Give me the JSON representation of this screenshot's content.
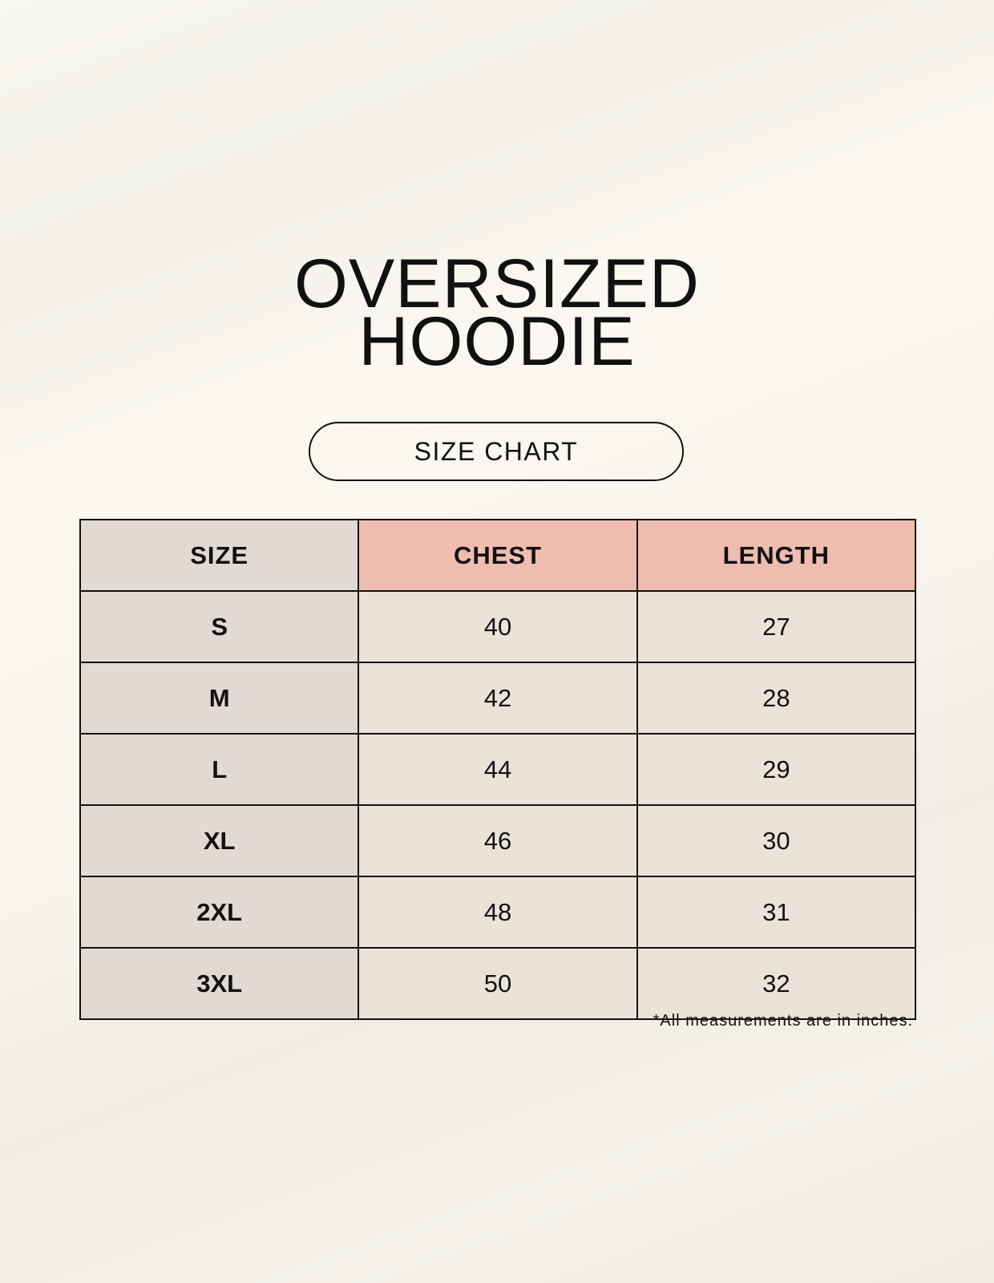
{
  "title_lines": [
    "OVERSIZED",
    "HOODIE"
  ],
  "badge": "SIZE CHART",
  "table": {
    "headers": [
      "SIZE",
      "CHEST",
      "LENGTH"
    ],
    "rows": [
      [
        "S",
        "40",
        "27"
      ],
      [
        "M",
        "42",
        "28"
      ],
      [
        "L",
        "44",
        "29"
      ],
      [
        "XL",
        "46",
        "30"
      ],
      [
        "2XL",
        "48",
        "31"
      ],
      [
        "3XL",
        "50",
        "32"
      ]
    ]
  },
  "footnote": "*All measurements are in inches.",
  "colors": {
    "size_column": "#e1d9d3",
    "header_accent": "#eebdaf",
    "cell": "#ebe3d8",
    "background": "#f9f6ef"
  }
}
